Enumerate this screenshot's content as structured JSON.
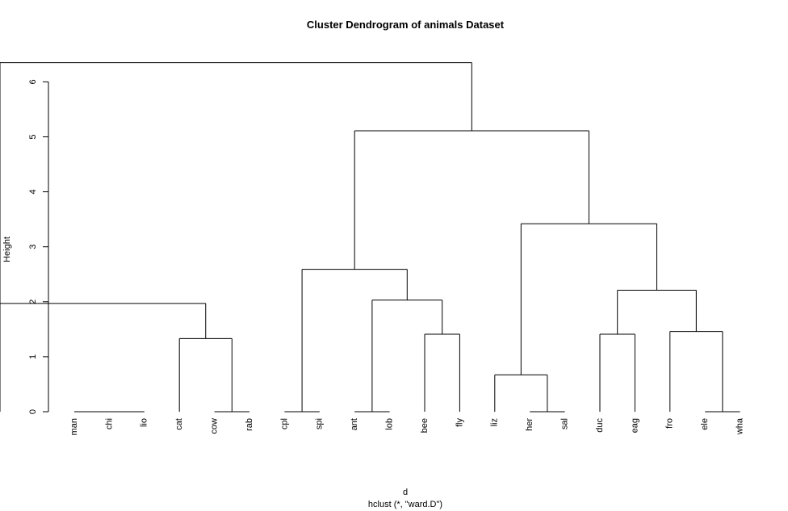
{
  "chart_data": {
    "type": "dendrogram",
    "title": "Cluster Dendrogram of animals Dataset",
    "ylabel": "Height",
    "xlabel": "d",
    "sublabel": "hclust (*, \"ward.D\")",
    "ylim": [
      0,
      6.35
    ],
    "yticks": [
      0,
      1,
      2,
      3,
      4,
      5,
      6
    ],
    "leaves": [
      "man",
      "chi",
      "lio",
      "cat",
      "cow",
      "rab",
      "cpl",
      "spi",
      "ant",
      "lob",
      "bee",
      "fly",
      "liz",
      "her",
      "sal",
      "duc",
      "eag",
      "fro",
      "ele",
      "wha"
    ],
    "merges": [
      {
        "left": "man",
        "right": "chi",
        "height": 0
      },
      {
        "left": "chi",
        "right": "lio",
        "height": 0
      },
      {
        "left": "cow",
        "right": "rab",
        "height": 0
      },
      {
        "left": "cpl",
        "right": "spi",
        "height": 0
      },
      {
        "left": "ant",
        "right": "lob",
        "height": 0
      },
      {
        "left": "her",
        "right": "sal",
        "height": 0
      },
      {
        "left": "ele",
        "right": "wha",
        "height": 0
      },
      {
        "left": "bee",
        "right": "fly",
        "height": 1.41
      },
      {
        "left": "duc",
        "right": "eag",
        "height": 1.41
      },
      {
        "left": "fro",
        "right": [
          "ele",
          "wha"
        ],
        "height": 1.46
      },
      {
        "left": "cat",
        "right": [
          "cow",
          "rab"
        ],
        "height": 1.33
      },
      {
        "left": "liz",
        "right": [
          "her",
          "sal"
        ],
        "height": 0.67
      },
      {
        "left": [
          "man",
          "chi",
          "lio"
        ],
        "right": [
          "cat",
          "cow",
          "rab"
        ],
        "height": 1.97
      },
      {
        "left": [
          "ant",
          "lob"
        ],
        "right": [
          "bee",
          "fly"
        ],
        "height": 2.03
      },
      {
        "left": [
          "cpl",
          "spi"
        ],
        "right": [
          "ant",
          "lob",
          "bee",
          "fly"
        ],
        "height": 2.59
      },
      {
        "left": [
          "duc",
          "eag"
        ],
        "right": [
          "fro",
          "ele",
          "wha"
        ],
        "height": 2.21
      },
      {
        "left": [
          "liz",
          "her",
          "sal"
        ],
        "right": [
          "duc",
          "eag",
          "fro",
          "ele",
          "wha"
        ],
        "height": 3.42
      },
      {
        "left": [
          "cpl",
          "spi",
          "ant",
          "lob",
          "bee",
          "fly"
        ],
        "right": [
          "liz",
          "her",
          "sal",
          "duc",
          "eag",
          "fro",
          "ele",
          "wha"
        ],
        "height": 5.11
      },
      {
        "left": [
          "man",
          "chi",
          "lio",
          "cat",
          "cow",
          "rab"
        ],
        "right": [
          "cpl",
          "spi",
          "ant",
          "lob",
          "bee",
          "fly",
          "liz",
          "her",
          "sal",
          "duc",
          "eag",
          "fro",
          "ele",
          "wha"
        ],
        "height": 6.35
      }
    ]
  }
}
